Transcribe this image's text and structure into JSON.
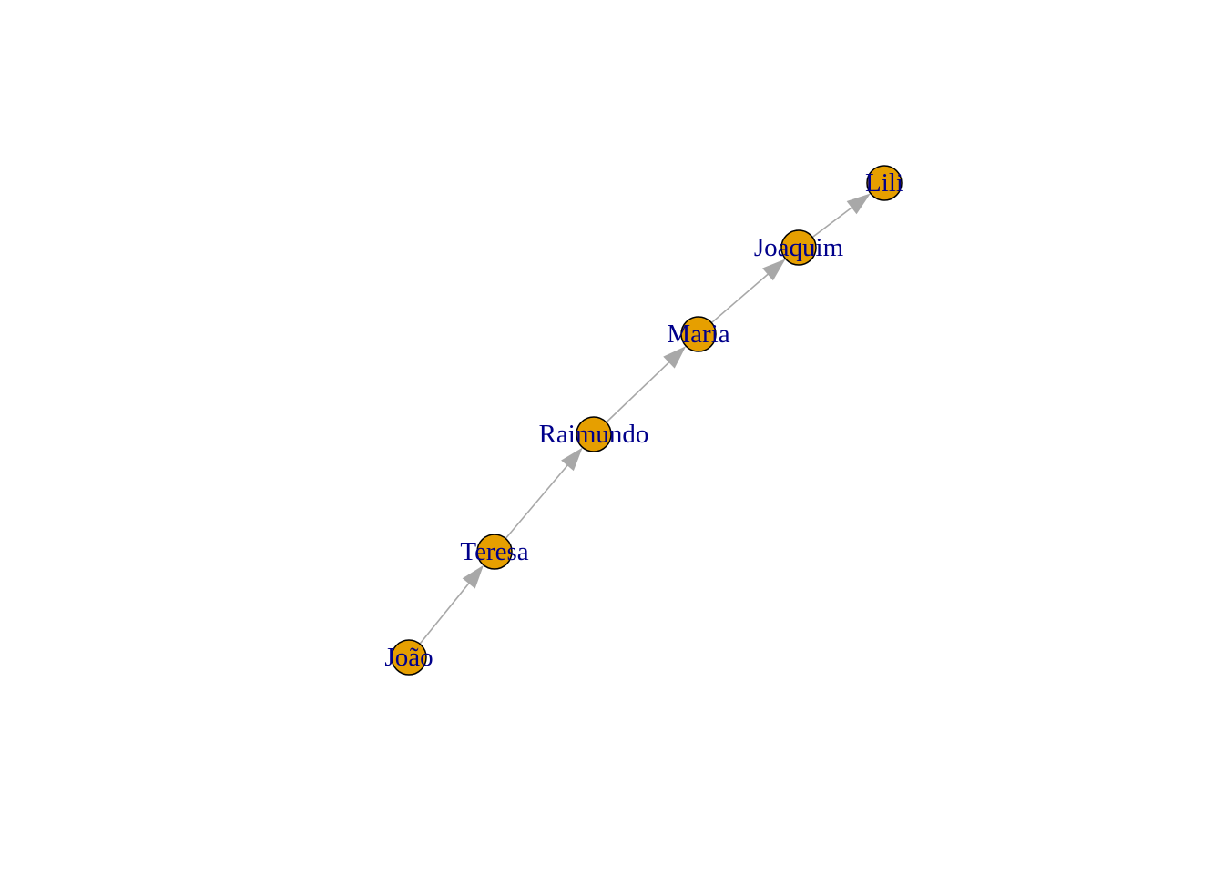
{
  "graph": {
    "node_color": "#e69f00",
    "label_color": "#00008b",
    "edge_color": "#a8a8a8",
    "directed": true,
    "nodes": [
      {
        "id": "joao",
        "label": "João"
      },
      {
        "id": "teresa",
        "label": "Teresa"
      },
      {
        "id": "raimundo",
        "label": "Raimundo"
      },
      {
        "id": "maria",
        "label": "Maria"
      },
      {
        "id": "joaquim",
        "label": "Joaquim"
      },
      {
        "id": "lili",
        "label": "Lili"
      }
    ],
    "edges": [
      {
        "from": "joao",
        "to": "teresa"
      },
      {
        "from": "teresa",
        "to": "raimundo"
      },
      {
        "from": "raimundo",
        "to": "maria"
      },
      {
        "from": "maria",
        "to": "joaquim"
      },
      {
        "from": "joaquim",
        "to": "lili"
      }
    ]
  }
}
